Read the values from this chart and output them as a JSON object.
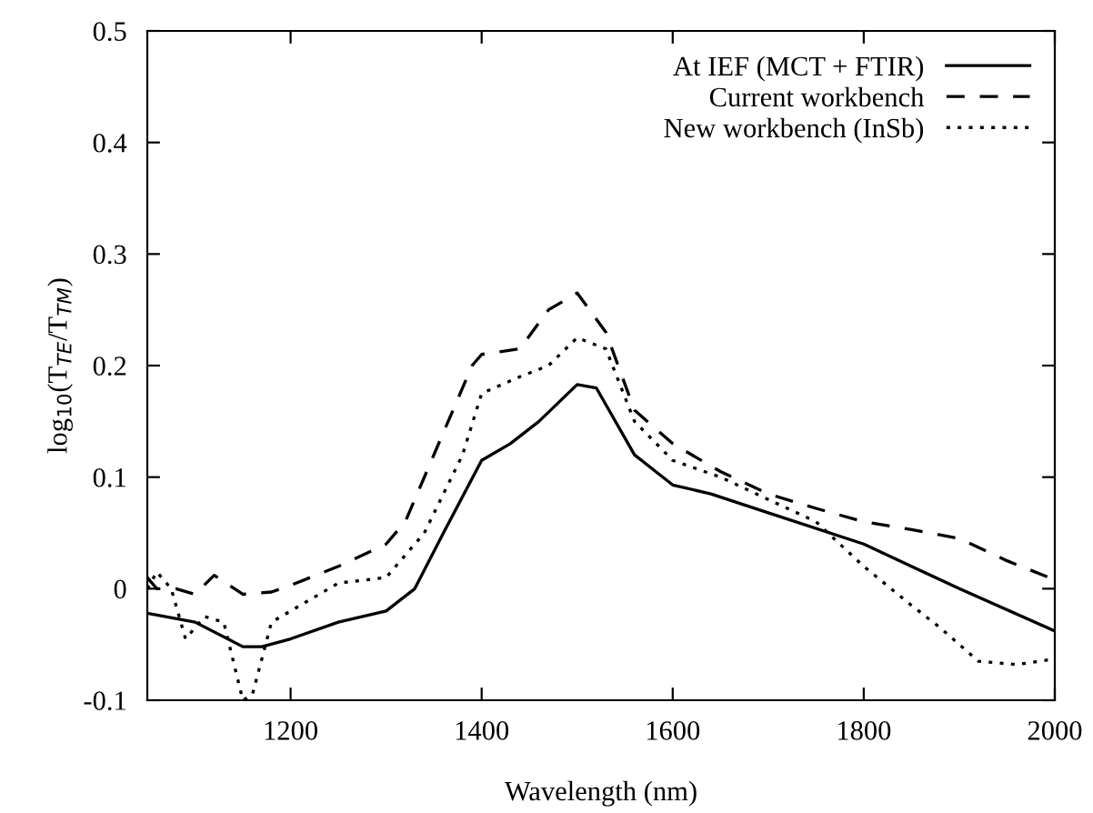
{
  "chart_data": {
    "type": "line",
    "xlabel": "Wavelength (nm)",
    "ylabel": "log$_{10}$(T$_{TE}$/T$_{TM}$)",
    "xlim": [
      1050,
      2000
    ],
    "xticks": [
      1200,
      1400,
      1600,
      1800,
      2000
    ],
    "ylim": [
      -0.1,
      0.5
    ],
    "yticks": [
      {
        "value": -0.1,
        "label": "-0.1"
      },
      0,
      0.1,
      0.2,
      0.3,
      0.4,
      0.5
    ],
    "legend": "top right",
    "grid": false,
    "series": [
      {
        "name": "At IEF (MCT + FTIR)",
        "color": "#000000",
        "line_style": "solid",
        "x": [
          1050,
          1100,
          1150,
          1170,
          1200,
          1250,
          1300,
          1330,
          1360,
          1400,
          1430,
          1460,
          1500,
          1520,
          1560,
          1600,
          1640,
          1700,
          1800,
          1900,
          2000
        ],
        "values": [
          -0.022,
          -0.03,
          -0.052,
          -0.052,
          -0.045,
          -0.03,
          -0.02,
          0.0,
          0.05,
          0.115,
          0.13,
          0.15,
          0.183,
          0.18,
          0.12,
          0.093,
          0.085,
          0.068,
          0.04,
          0.0,
          -0.038
        ]
      },
      {
        "name": "Current workbench",
        "color": "#000000",
        "line_style": "dashed",
        "x": [
          1050,
          1060,
          1080,
          1100,
          1120,
          1150,
          1180,
          1200,
          1250,
          1300,
          1320,
          1360,
          1390,
          1400,
          1440,
          1470,
          1500,
          1530,
          1560,
          1600,
          1650,
          1700,
          1750,
          1800,
          1850,
          1900,
          1950,
          2000
        ],
        "values": [
          0.01,
          0.0,
          0.0,
          -0.005,
          0.012,
          -0.005,
          -0.003,
          0.003,
          0.02,
          0.04,
          0.06,
          0.14,
          0.2,
          0.21,
          0.215,
          0.25,
          0.265,
          0.23,
          0.16,
          0.13,
          0.105,
          0.085,
          0.072,
          0.06,
          0.053,
          0.045,
          0.025,
          0.008
        ]
      },
      {
        "name": "New workbench (InSb)",
        "color": "#000000",
        "line_style": "dotted",
        "x": [
          1050,
          1060,
          1075,
          1090,
          1110,
          1130,
          1150,
          1160,
          1180,
          1200,
          1250,
          1300,
          1340,
          1380,
          1400,
          1440,
          1470,
          1500,
          1530,
          1560,
          1600,
          1650,
          1700,
          1750,
          1800,
          1850,
          1880,
          1920,
          1960,
          2000
        ],
        "values": [
          0.0,
          0.015,
          0.0,
          -0.045,
          -0.025,
          -0.03,
          -0.1,
          -0.095,
          -0.03,
          -0.02,
          0.005,
          0.01,
          0.05,
          0.12,
          0.175,
          0.19,
          0.2,
          0.225,
          0.215,
          0.15,
          0.115,
          0.1,
          0.08,
          0.06,
          0.02,
          -0.015,
          -0.035,
          -0.065,
          -0.068,
          -0.063
        ]
      }
    ]
  }
}
